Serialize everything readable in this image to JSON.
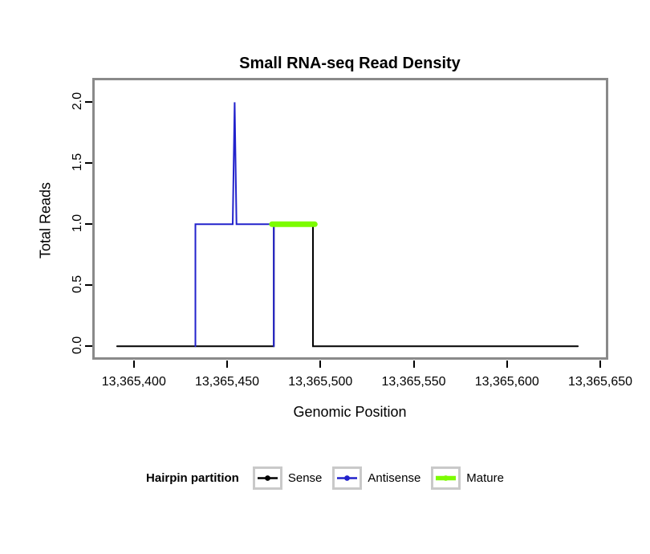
{
  "chart_data": {
    "type": "line",
    "title": "Small RNA-seq Read Density",
    "xlabel": "Genomic Position",
    "ylabel": "Total Reads",
    "xlim": [
      13365379,
      13365653
    ],
    "ylim": [
      -0.09,
      2.18
    ],
    "grid": false,
    "x_ticks": [
      13365400,
      13365450,
      13365500,
      13365550,
      13365600,
      13365650
    ],
    "x_tick_labels": [
      "13,365,400",
      "13,365,450",
      "13,365,500",
      "13,365,550",
      "13,365,600",
      "13,365,650"
    ],
    "y_ticks": [
      0.0,
      0.5,
      1.0,
      1.5,
      2.0
    ],
    "y_tick_labels": [
      "0.0",
      "0.5",
      "1.0",
      "1.5",
      "2.0"
    ],
    "series": [
      {
        "name": "Sense",
        "color": "#000000",
        "line_width": 2,
        "points": [
          [
            13365391,
            0
          ],
          [
            13365475,
            0
          ],
          [
            13365475,
            1
          ],
          [
            13365496,
            1
          ],
          [
            13365496,
            0
          ],
          [
            13365638,
            0
          ]
        ]
      },
      {
        "name": "Antisense",
        "color": "#2222CC",
        "line_width": 2,
        "points": [
          [
            13365433,
            0
          ],
          [
            13365433,
            1
          ],
          [
            13365453,
            1
          ],
          [
            13365454,
            2
          ],
          [
            13365455,
            1
          ],
          [
            13365475,
            1
          ],
          [
            13365475,
            0
          ]
        ]
      },
      {
        "name": "Mature",
        "color": "#7CFC00",
        "line_width": 7,
        "points": [
          [
            13365474,
            1
          ],
          [
            13365497,
            1
          ]
        ]
      }
    ],
    "legend": {
      "title": "Hairpin partition",
      "position": "bottom",
      "entries": [
        {
          "label": "Sense",
          "color": "#000000",
          "line_width": 2.5
        },
        {
          "label": "Antisense",
          "color": "#2222CC",
          "line_width": 2.5
        },
        {
          "label": "Mature",
          "color": "#7CFC00",
          "line_width": 5.5
        }
      ]
    }
  }
}
